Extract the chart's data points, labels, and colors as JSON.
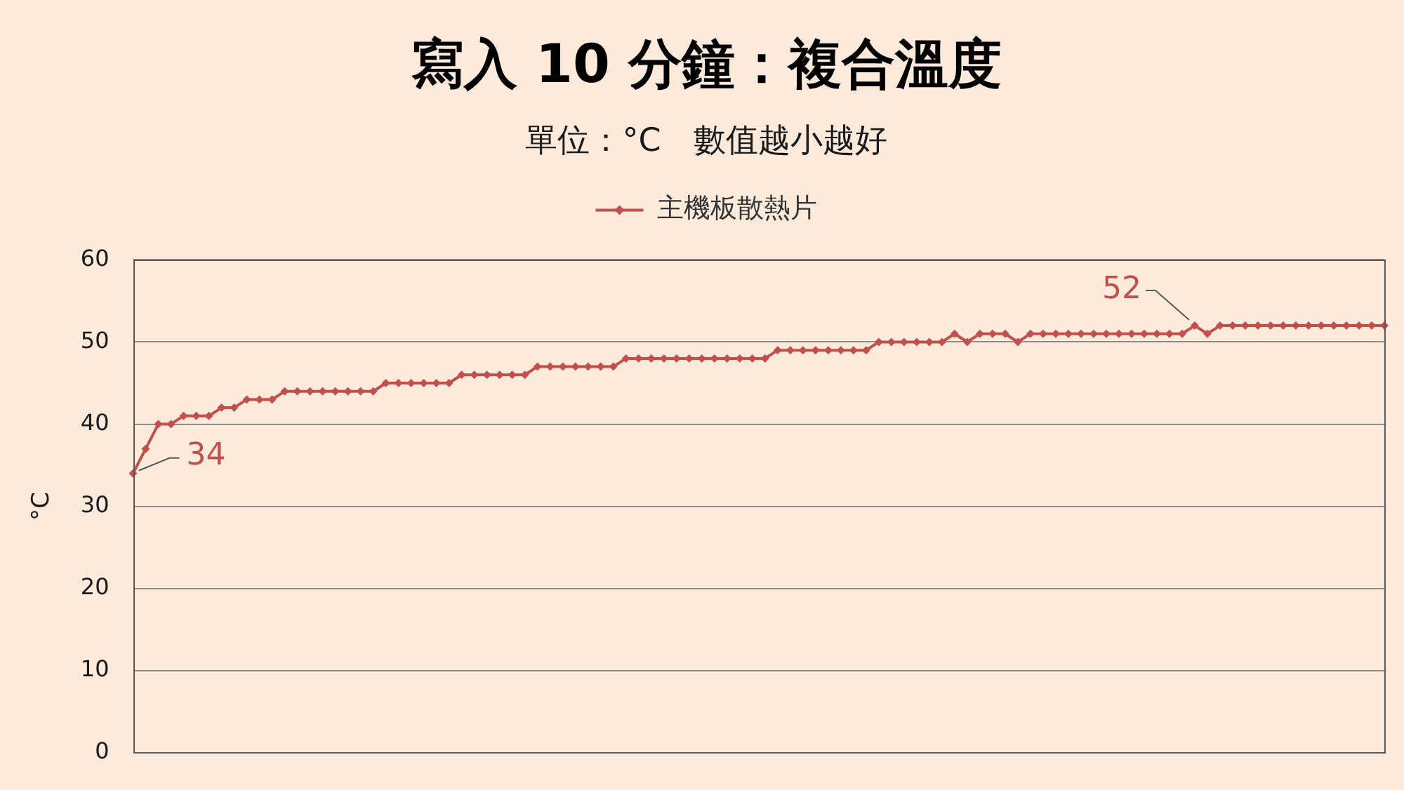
{
  "chart_data": {
    "type": "line",
    "title": "寫入 10 分鐘：複合溫度",
    "subtitle": "單位：°C　數值越小越好",
    "ylabel": "°C",
    "categories": [
      null,
      null,
      null,
      null,
      null,
      null,
      null,
      null,
      null,
      null,
      null,
      null,
      null,
      null,
      null,
      null,
      null,
      null,
      null,
      null,
      null,
      null,
      null,
      null,
      null,
      null,
      null,
      null,
      null,
      null,
      null,
      null,
      null,
      null,
      null,
      null,
      null,
      null,
      null,
      null,
      null,
      null,
      null,
      null,
      null,
      null,
      null,
      null,
      null,
      null,
      null,
      null,
      null,
      null,
      null,
      null,
      null,
      null,
      null,
      null,
      null,
      null,
      null,
      null,
      null,
      null,
      null,
      null,
      null,
      null,
      null,
      null,
      null,
      null,
      null,
      null,
      null,
      null,
      null,
      null,
      null,
      null,
      null,
      null,
      null,
      null,
      null,
      null,
      null,
      null,
      null,
      null,
      null,
      null,
      null,
      null,
      null,
      null,
      null,
      null
    ],
    "series": [
      {
        "name": "主機板散熱片",
        "color": "#c0504d",
        "values": [
          34,
          37,
          40,
          40,
          41,
          41,
          41,
          42,
          42,
          43,
          43,
          43,
          44,
          44,
          44,
          44,
          44,
          44,
          44,
          44,
          45,
          45,
          45,
          45,
          45,
          45,
          46,
          46,
          46,
          46,
          46,
          46,
          47,
          47,
          47,
          47,
          47,
          47,
          47,
          48,
          48,
          48,
          48,
          48,
          48,
          48,
          48,
          48,
          48,
          48,
          48,
          49,
          49,
          49,
          49,
          49,
          49,
          49,
          49,
          50,
          50,
          50,
          50,
          50,
          50,
          51,
          50,
          51,
          51,
          51,
          50,
          51,
          51,
          51,
          51,
          51,
          51,
          51,
          51,
          51,
          51,
          51,
          51,
          51,
          52,
          51,
          52,
          52,
          52,
          52,
          52,
          52,
          52,
          52,
          52,
          52,
          52,
          52,
          52,
          52
        ],
        "value_labels": [
          "34",
          null,
          null,
          null,
          null,
          null,
          null,
          null,
          null,
          null,
          null,
          null,
          null,
          null,
          null,
          null,
          null,
          null,
          null,
          null,
          null,
          null,
          null,
          null,
          null,
          null,
          null,
          null,
          null,
          null,
          null,
          null,
          null,
          null,
          null,
          null,
          null,
          null,
          null,
          null,
          null,
          null,
          null,
          null,
          null,
          null,
          null,
          null,
          null,
          null,
          null,
          null,
          null,
          null,
          null,
          null,
          null,
          null,
          null,
          null,
          null,
          null,
          null,
          null,
          null,
          null,
          null,
          null,
          null,
          null,
          null,
          null,
          null,
          null,
          null,
          null,
          null,
          null,
          null,
          null,
          null,
          null,
          null,
          null,
          "52",
          null,
          null,
          null,
          null,
          null,
          null,
          null,
          null,
          null,
          null,
          null,
          null,
          null,
          null,
          null
        ]
      }
    ],
    "ylim": [
      0,
      60
    ],
    "yticks": [
      0,
      10,
      20,
      30,
      40,
      50,
      60
    ],
    "grid": "y",
    "legend": "top",
    "tick_labels": "y",
    "marker": "diamond",
    "line_style": "solid"
  }
}
